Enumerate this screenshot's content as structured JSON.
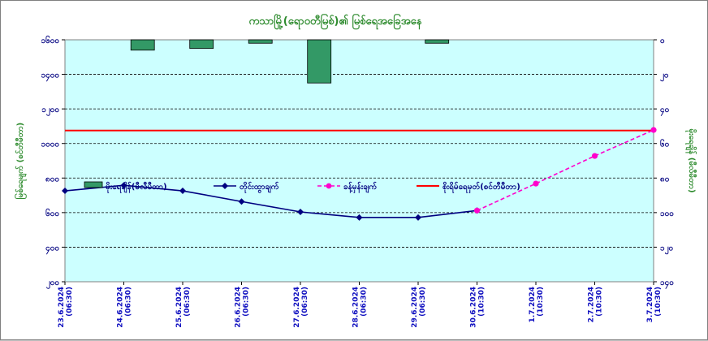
{
  "chart_data": {
    "type": "bar+line",
    "title": "ကသာမြို့(ရောဝတီမြစ်)၏ မြစ်ရေအခြေအနေ",
    "ylabel_left": "မြစ်ရေမျက် (စင်တီမီတာ)",
    "ylabel_right": "မိုးရေချိန် (မီလီမီတာ)",
    "categories": [
      [
        "23.6.2024",
        "(06:30)"
      ],
      [
        "24.6.2024",
        "(06:30)"
      ],
      [
        "25.6.2024",
        "(06:30)"
      ],
      [
        "26.6.2024",
        "(06:30)"
      ],
      [
        "27.6.2024",
        "(06:30)"
      ],
      [
        "28.6.2024",
        "(06:30)"
      ],
      [
        "29.6.2024",
        "(06:30)"
      ],
      [
        "30.6.2024",
        "(10:30)"
      ],
      [
        "1.7.2024",
        "(10:30)"
      ],
      [
        "2.7.2024",
        "(10:30)"
      ],
      [
        "3.7.2024",
        "(10:30)"
      ]
    ],
    "ylim_left": [
      200,
      1600
    ],
    "yticks_left": [
      {
        "value": 200,
        "label": "၂၀၀"
      },
      {
        "value": 400,
        "label": "၄၀၀"
      },
      {
        "value": 600,
        "label": "၆၀၀"
      },
      {
        "value": 800,
        "label": "၈၀၀"
      },
      {
        "value": 1000,
        "label": "၁၀၀၀"
      },
      {
        "value": 1200,
        "label": "၁၂၀၀"
      },
      {
        "value": 1400,
        "label": "၁၄၀၀"
      },
      {
        "value": 1600,
        "label": "၁၆၀၀"
      }
    ],
    "ylim_right": [
      140,
      0
    ],
    "yticks_right": [
      {
        "value": 0,
        "label": "၀"
      },
      {
        "value": 20,
        "label": "၂၀"
      },
      {
        "value": 40,
        "label": "၄၀"
      },
      {
        "value": 60,
        "label": "၆၀"
      },
      {
        "value": 80,
        "label": "၈၀"
      },
      {
        "value": 100,
        "label": "၁၀၀"
      },
      {
        "value": 120,
        "label": "၁၂၀"
      },
      {
        "value": 140,
        "label": "၁၄၀"
      }
    ],
    "grid": true,
    "legend": "middle-left",
    "series": [
      {
        "name": "မိုးရေချိန်(မီလီမီတာ)",
        "kind": "bar",
        "axis": "right",
        "color": "#339966",
        "values": [
          null,
          6,
          5,
          2,
          25,
          null,
          2,
          null,
          null,
          null,
          null
        ]
      },
      {
        "name": "တိုင်းထွာချက်",
        "kind": "line",
        "axis": "left",
        "color": "#000080",
        "values": [
          726,
          758,
          726,
          664,
          604,
          572,
          572,
          612,
          null,
          null,
          null
        ]
      },
      {
        "name": "ခန့်မှန်းချက်",
        "kind": "line",
        "axis": "left",
        "style": "dashed",
        "color": "#ff00cc",
        "values": [
          null,
          null,
          null,
          null,
          null,
          null,
          null,
          612,
          768,
          928,
          1078
        ]
      },
      {
        "name": "စိုးရိမ်ရေမှတ်(စင်တီမီတာ)",
        "kind": "hline",
        "axis": "left",
        "color": "#ff0000",
        "value": 1075
      }
    ]
  }
}
